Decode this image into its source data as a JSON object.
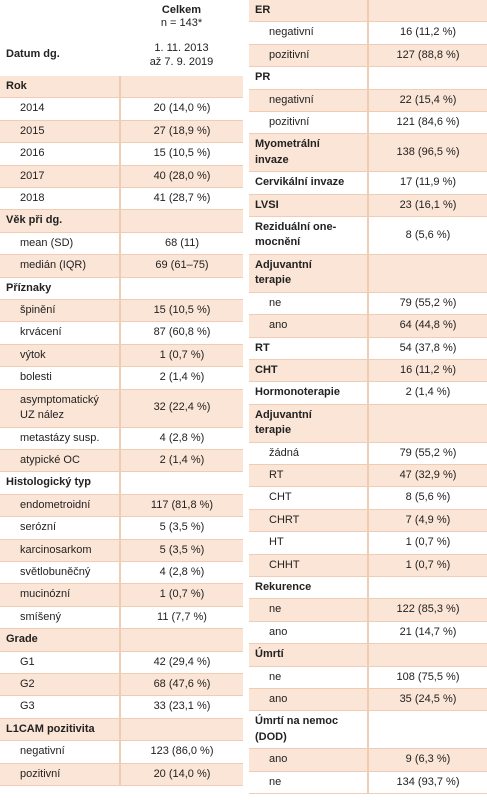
{
  "left": {
    "header": {
      "title": "Celkem",
      "subtitle": "n = 143*"
    },
    "date": {
      "label": "Datum dg.",
      "value": "1. 11. 2013\naž 7. 9. 2019"
    },
    "sections": [
      {
        "heading": "Rok",
        "rows": [
          [
            "2014",
            "20 (14,0 %)"
          ],
          [
            "2015",
            "27 (18,9 %)"
          ],
          [
            "2016",
            "15 (10,5 %)"
          ],
          [
            "2017",
            "40 (28,0 %)"
          ],
          [
            "2018",
            "41 (28,7 %)"
          ]
        ]
      },
      {
        "heading": "Věk při dg.",
        "rows": [
          [
            "mean (SD)",
            "68 (11)"
          ],
          [
            "medián (IQR)",
            "69 (61–75)"
          ]
        ]
      },
      {
        "heading": "Příznaky",
        "rows": [
          [
            "špinění",
            "15 (10,5 %)"
          ],
          [
            "krvácení",
            "87 (60,8 %)"
          ],
          [
            "výtok",
            "1 (0,7 %)"
          ],
          [
            "bolesti",
            "2 (1,4 %)"
          ],
          [
            "asymptomatický\nUZ nález",
            "32 (22,4 %)"
          ],
          [
            "metastázy susp.",
            "4 (2,8 %)"
          ],
          [
            "atypické OC",
            "2 (1,4 %)"
          ]
        ]
      },
      {
        "heading": "Histologický typ",
        "rows": [
          [
            "endometroidní",
            "117 (81,8 %)"
          ],
          [
            "serózní",
            "5 (3,5 %)"
          ],
          [
            "karcinosarkom",
            "5 (3,5 %)"
          ],
          [
            "světlobuněčný",
            "4 (2,8 %)"
          ],
          [
            "mucinózní",
            "1 (0,7 %)"
          ],
          [
            "smíšený",
            "11 (7,7 %)"
          ]
        ]
      },
      {
        "heading": "Grade",
        "rows": [
          [
            "G1",
            "42 (29,4 %)"
          ],
          [
            "G2",
            "68 (47,6 %)"
          ],
          [
            "G3",
            "33 (23,1 %)"
          ]
        ]
      },
      {
        "heading": "L1CAM pozitivita",
        "rows": [
          [
            "negativní",
            "123 (86,0 %)"
          ],
          [
            "pozitivní",
            "20 (14,0 %)"
          ]
        ]
      }
    ]
  },
  "right": {
    "sections": [
      {
        "heading": "ER",
        "rows": [
          [
            "negativní",
            "16 (11,2 %)"
          ],
          [
            "pozitivní",
            "127 (88,8 %)"
          ]
        ]
      },
      {
        "heading": "PR",
        "rows": [
          [
            "negativní",
            "22 (15,4 %)"
          ],
          [
            "pozitivní",
            "121 (84,6 %)"
          ]
        ]
      },
      {
        "heading": "Myometrální\ninvaze",
        "value": "138 (96,5 %)",
        "rows": []
      },
      {
        "heading": "Cervikální invaze",
        "value": "17 (11,9 %)",
        "rows": []
      },
      {
        "heading": "LVSI",
        "value": "23 (16,1 %)",
        "rows": []
      },
      {
        "heading": "Reziduální one-\nmocnění",
        "value": "8 (5,6 %)",
        "rows": []
      },
      {
        "heading": "Adjuvantní\nterapie",
        "rows": [
          [
            "ne",
            "79 (55,2 %)"
          ],
          [
            "ano",
            "64 (44,8 %)"
          ]
        ]
      },
      {
        "heading": "RT",
        "value": "54 (37,8 %)",
        "rows": []
      },
      {
        "heading": "CHT",
        "value": "16 (11,2 %)",
        "rows": []
      },
      {
        "heading": "Hormonoterapie",
        "value": "2 (1,4 %)",
        "rows": []
      },
      {
        "heading": "Adjuvantní\nterapie",
        "rows": [
          [
            "žádná",
            "79 (55,2 %)"
          ],
          [
            "RT",
            "47 (32,9 %)"
          ],
          [
            "CHT",
            "8 (5,6 %)"
          ],
          [
            "CHRT",
            "7 (4,9 %)"
          ],
          [
            "HT",
            "1 (0,7 %)"
          ],
          [
            "CHHT",
            "1 (0,7 %)"
          ]
        ]
      },
      {
        "heading": "Rekurence",
        "rows": [
          [
            "ne",
            "122 (85,3 %)"
          ],
          [
            "ano",
            "21 (14,7 %)"
          ]
        ]
      },
      {
        "heading": "Úmrtí",
        "rows": [
          [
            "ne",
            "108 (75,5 %)"
          ],
          [
            "ano",
            "35 (24,5 %)"
          ]
        ]
      },
      {
        "heading": "Úmrtí na nemoc (DOD)",
        "rows": [
          [
            "ano",
            "9 (6,3 %)"
          ],
          [
            "ne",
            "134 (93,7 %)"
          ]
        ]
      }
    ]
  }
}
